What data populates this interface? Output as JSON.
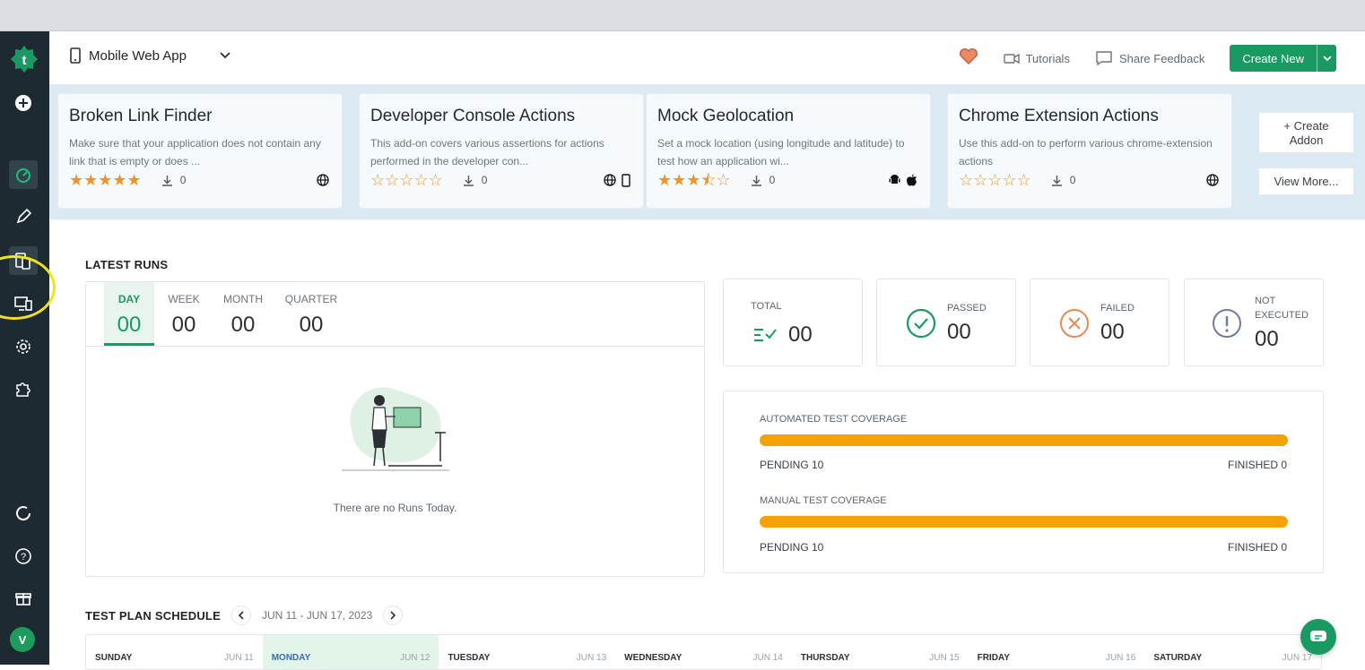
{
  "header": {
    "app_name": "Mobile Web App",
    "tutorials_label": "Tutorials",
    "feedback_label": "Share Feedback",
    "create_label": "Create New"
  },
  "sidebar": {
    "avatar_initial": "V",
    "icons": [
      "add-icon",
      "dashboard-icon",
      "edit-icon",
      "devices-icon",
      "run-icon",
      "settings-icon",
      "addons-icon",
      "refresh-icon",
      "help-icon",
      "gift-icon"
    ]
  },
  "addons": [
    {
      "title": "Broken Link Finder",
      "desc": "Make sure that your application does not contain any link that is empty or does ...",
      "rating": 5,
      "stars": "★★★★★",
      "downloads": "0",
      "platforms": [
        "web"
      ]
    },
    {
      "title": "Developer Console Actions",
      "desc": "This add-on covers various assertions for actions performed in the developer con...",
      "rating": 0,
      "stars": "☆☆☆☆☆",
      "downloads": "0",
      "platforms": [
        "web",
        "mobile"
      ]
    },
    {
      "title": "Mock Geolocation",
      "desc": "Set a mock location (using longitude and latitude) to test how an application wi...",
      "rating": 3.5,
      "stars": "★★★⯪☆",
      "downloads": "0",
      "platforms": [
        "android",
        "apple"
      ]
    },
    {
      "title": "Chrome Extension Actions",
      "desc": "Use this add-on to perform various chrome-extension actions",
      "rating": 0,
      "stars": "☆☆☆☆☆",
      "downloads": "0",
      "platforms": [
        "web"
      ]
    }
  ],
  "addon_actions": {
    "create_line1": "+ Create",
    "create_line2": "Addon",
    "view_more": "View More..."
  },
  "latest_runs": {
    "title": "LATEST RUNS",
    "tabs": [
      {
        "label": "DAY",
        "value": "00"
      },
      {
        "label": "WEEK",
        "value": "00"
      },
      {
        "label": "MONTH",
        "value": "00"
      },
      {
        "label": "QUARTER",
        "value": "00"
      }
    ],
    "empty_message": "There are no Runs Today."
  },
  "stats": {
    "total": {
      "label": "TOTAL",
      "value": "00"
    },
    "passed": {
      "label": "PASSED",
      "value": "00"
    },
    "failed": {
      "label": "FAILED",
      "value": "00"
    },
    "not_executed": {
      "label_line1": "NOT",
      "label_line2": "EXECUTED",
      "value": "00"
    }
  },
  "coverage": {
    "automated": {
      "label": "AUTOMATED TEST COVERAGE",
      "pending": "PENDING 10",
      "finished": "FINISHED 0",
      "pending_fraction": 1.0
    },
    "manual": {
      "label": "MANUAL TEST COVERAGE",
      "pending": "PENDING 10",
      "finished": "FINISHED 0",
      "pending_fraction": 1.0
    },
    "bar_color": "#f5a207"
  },
  "schedule": {
    "title": "TEST PLAN SCHEDULE",
    "range": "JUN 11 - JUN 17, 2023",
    "days": [
      {
        "name": "SUNDAY",
        "date": "JUN 11"
      },
      {
        "name": "MONDAY",
        "date": "JUN 12"
      },
      {
        "name": "TUESDAY",
        "date": "JUN 13"
      },
      {
        "name": "WEDNESDAY",
        "date": "JUN 14"
      },
      {
        "name": "THURSDAY",
        "date": "JUN 15"
      },
      {
        "name": "FRIDAY",
        "date": "JUN 16"
      },
      {
        "name": "SATURDAY",
        "date": "JUN 17"
      }
    ]
  },
  "colors": {
    "brand": "#1a9a62",
    "sidebar": "#1e2a31",
    "star": "#ef9620"
  }
}
